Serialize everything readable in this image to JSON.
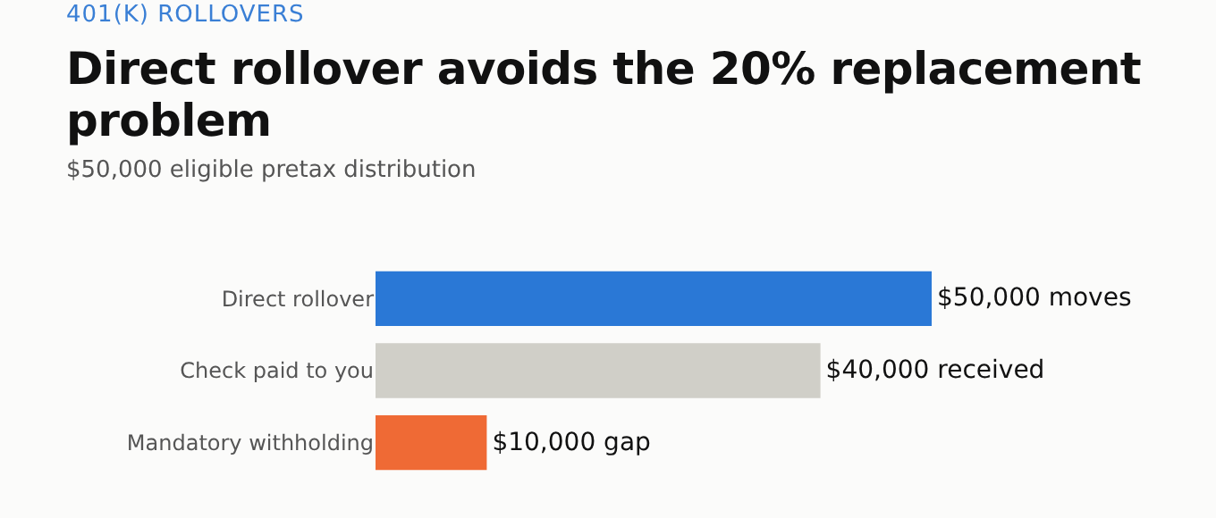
{
  "chart_data": {
    "type": "bar",
    "orientation": "horizontal",
    "title": "Direct rollover avoids the 20% replacement problem",
    "subtitle": "$50,000 eligible pretax distribution",
    "annotations": [
      "401(K) ROLLOVERS"
    ],
    "categories": [
      "Direct rollover",
      "Check paid to you",
      "Mandatory withholding"
    ],
    "values": [
      50000,
      40000,
      10000
    ],
    "colors": [
      "#2a78d6",
      "#d0cfc8",
      "#ef6a35"
    ],
    "value_labels": [
      "$50,000 moves",
      "$40,000 received",
      "$10,000 gap"
    ]
  }
}
